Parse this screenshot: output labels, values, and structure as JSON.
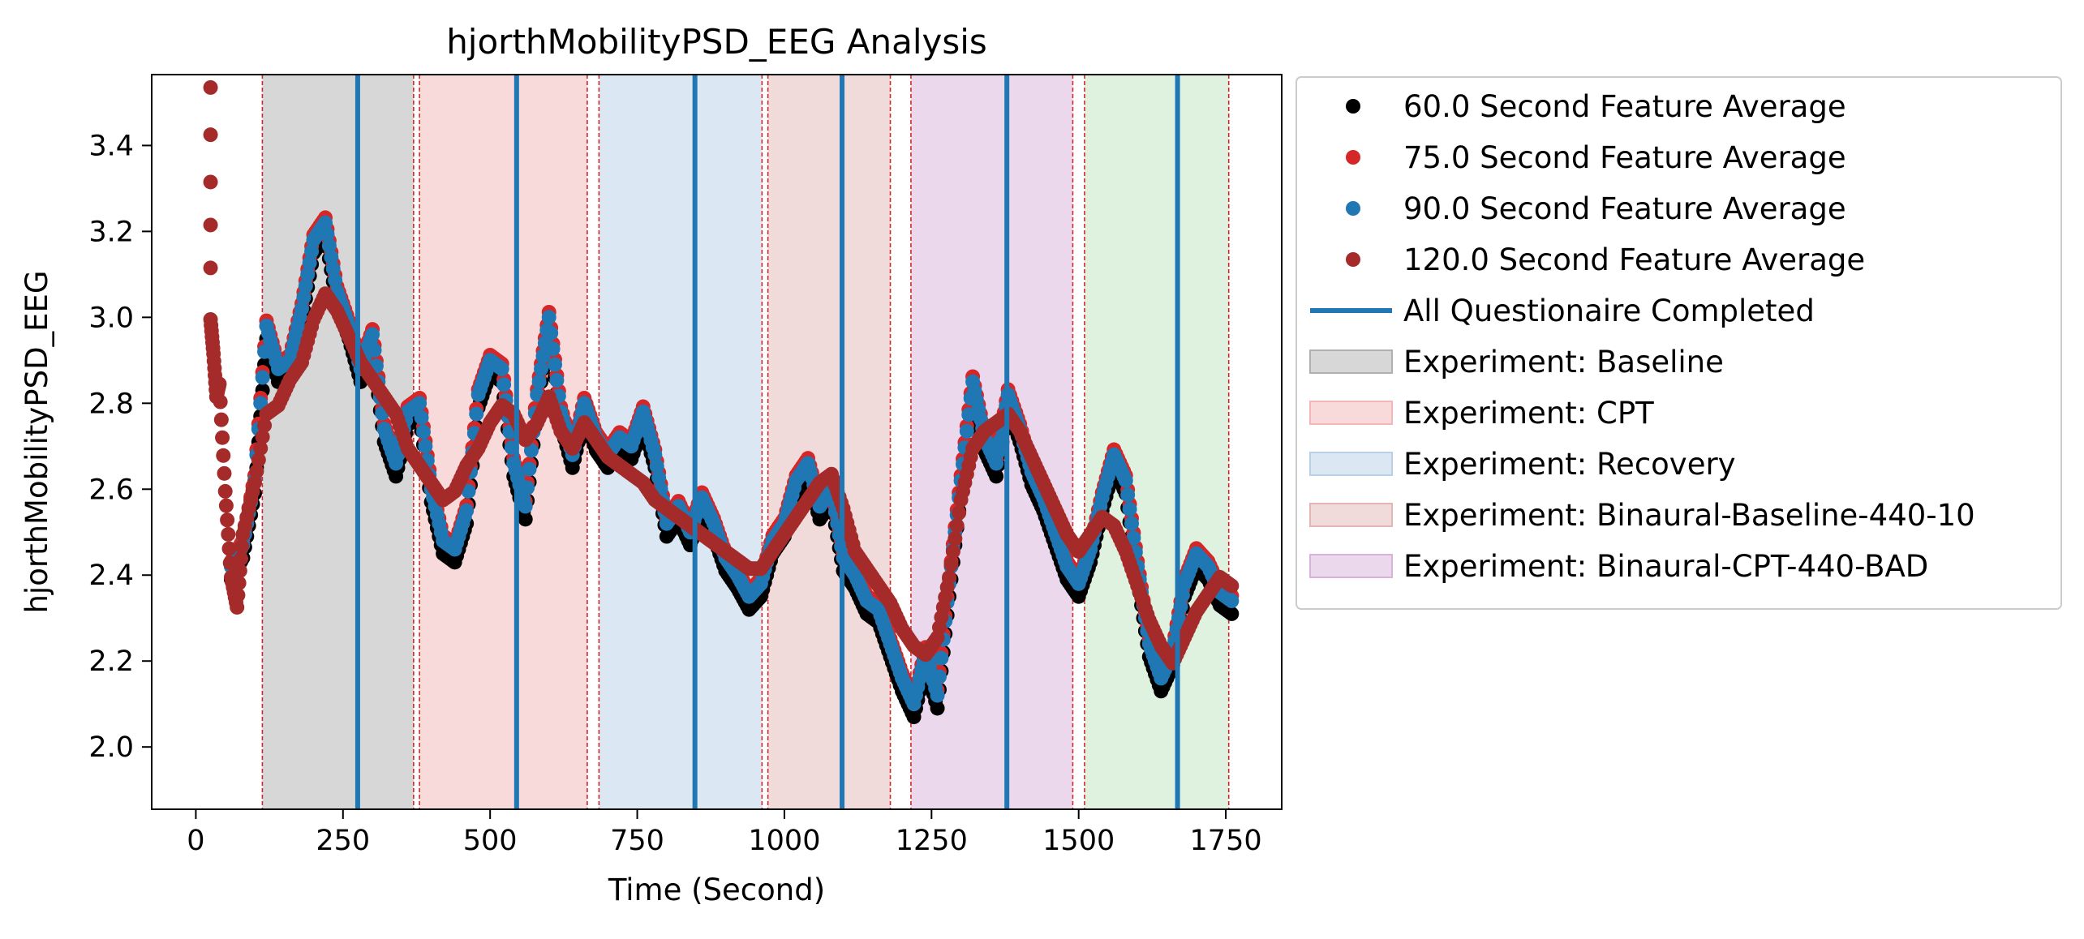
{
  "chart_data": {
    "type": "scatter",
    "title": "hjorthMobilityPSD_EEG Analysis",
    "xlabel": "Time (Second)",
    "ylabel": "hjorthMobilityPSD_EEG",
    "xlim": [
      -75,
      1845
    ],
    "ylim": [
      1.855,
      3.565
    ],
    "xticks": [
      0,
      250,
      500,
      750,
      1000,
      1250,
      1500,
      1750
    ],
    "yticks": [
      2.0,
      2.2,
      2.4,
      2.6,
      2.8,
      3.0,
      3.2,
      3.4
    ],
    "grid": false,
    "legend_position": "outside right, top",
    "phases": [
      {
        "label": "Experiment: Baseline",
        "start": 113,
        "end": 370,
        "color": "#b0b0b0"
      },
      {
        "label": "Experiment: CPT",
        "start": 380,
        "end": 665,
        "color": "#f4b6b8"
      },
      {
        "label": "Experiment: Recovery",
        "start": 685,
        "end": 962,
        "color": "#b8d0e8"
      },
      {
        "label": "Experiment: Binaural-Baseline-440-10",
        "start": 972,
        "end": 1180,
        "color": "#e3b5b5"
      },
      {
        "label": "Experiment: Binaural-CPT-440-BAD",
        "start": 1215,
        "end": 1490,
        "color": "#d8b2da"
      },
      {
        "label": "",
        "start": 1510,
        "end": 1755,
        "color": "#bfe3bf"
      }
    ],
    "phase_boundary_color": "#d62728",
    "questionnaire": {
      "label": "All Questionaire Completed",
      "color": "#1f77b4",
      "times": [
        275,
        545,
        848,
        1098,
        1378,
        1668
      ]
    },
    "series": [
      {
        "name": "60.0 Second Feature Average",
        "color": "#000000",
        "offset": -0.03,
        "x": [
          60,
          80,
          100,
          120,
          140,
          160,
          180,
          200,
          220,
          240,
          260,
          280,
          300,
          320,
          340,
          360,
          380,
          400,
          420,
          440,
          460,
          480,
          500,
          520,
          540,
          560,
          580,
          600,
          620,
          640,
          660,
          680,
          700,
          720,
          740,
          760,
          780,
          800,
          820,
          840,
          860,
          880,
          900,
          920,
          940,
          960,
          980,
          1000,
          1020,
          1040,
          1060,
          1080,
          1100,
          1120,
          1140,
          1160,
          1180,
          1200,
          1220,
          1240,
          1260,
          1280,
          1300,
          1320,
          1340,
          1360,
          1380,
          1400,
          1420,
          1440,
          1460,
          1480,
          1500,
          1520,
          1540,
          1560,
          1580,
          1600,
          1620,
          1640,
          1660,
          1680,
          1700,
          1720,
          1740,
          1760
        ],
        "y": [
          2.42,
          2.47,
          2.62,
          2.98,
          2.88,
          2.9,
          3.02,
          3.18,
          3.22,
          3.06,
          2.98,
          2.88,
          2.96,
          2.74,
          2.66,
          2.78,
          2.8,
          2.6,
          2.48,
          2.46,
          2.55,
          2.82,
          2.9,
          2.88,
          2.66,
          2.56,
          2.82,
          3.0,
          2.78,
          2.68,
          2.8,
          2.72,
          2.68,
          2.72,
          2.7,
          2.78,
          2.68,
          2.52,
          2.56,
          2.5,
          2.58,
          2.52,
          2.44,
          2.4,
          2.35,
          2.38,
          2.48,
          2.52,
          2.62,
          2.66,
          2.56,
          2.6,
          2.44,
          2.4,
          2.34,
          2.32,
          2.24,
          2.16,
          2.1,
          2.22,
          2.12,
          2.38,
          2.62,
          2.85,
          2.72,
          2.66,
          2.82,
          2.74,
          2.64,
          2.58,
          2.5,
          2.42,
          2.38,
          2.46,
          2.58,
          2.68,
          2.62,
          2.42,
          2.24,
          2.16,
          2.22,
          2.38,
          2.45,
          2.42,
          2.36,
          2.34
        ]
      },
      {
        "name": "75.0 Second Feature Average",
        "color": "#d62728",
        "offset": 0.012,
        "x": [
          60,
          80,
          100,
          120,
          140,
          160,
          180,
          200,
          220,
          240,
          260,
          280,
          300,
          320,
          340,
          360,
          380,
          400,
          420,
          440,
          460,
          480,
          500,
          520,
          540,
          560,
          580,
          600,
          620,
          640,
          660,
          680,
          700,
          720,
          740,
          760,
          780,
          800,
          820,
          840,
          860,
          880,
          900,
          920,
          940,
          960,
          980,
          1000,
          1020,
          1040,
          1060,
          1080,
          1100,
          1120,
          1140,
          1160,
          1180,
          1200,
          1220,
          1240,
          1260,
          1280,
          1300,
          1320,
          1340,
          1360,
          1380,
          1400,
          1420,
          1440,
          1460,
          1480,
          1500,
          1520,
          1540,
          1560,
          1580,
          1600,
          1620,
          1640,
          1660,
          1680,
          1700,
          1720,
          1740,
          1760
        ],
        "y": [
          2.42,
          2.47,
          2.62,
          2.98,
          2.88,
          2.9,
          3.02,
          3.18,
          3.22,
          3.06,
          2.98,
          2.88,
          2.96,
          2.74,
          2.66,
          2.78,
          2.8,
          2.6,
          2.48,
          2.46,
          2.55,
          2.82,
          2.9,
          2.88,
          2.66,
          2.56,
          2.82,
          3.0,
          2.78,
          2.68,
          2.8,
          2.72,
          2.68,
          2.72,
          2.7,
          2.78,
          2.68,
          2.52,
          2.56,
          2.5,
          2.58,
          2.52,
          2.44,
          2.4,
          2.35,
          2.38,
          2.48,
          2.52,
          2.62,
          2.66,
          2.56,
          2.6,
          2.44,
          2.4,
          2.34,
          2.32,
          2.24,
          2.16,
          2.1,
          2.22,
          2.12,
          2.38,
          2.62,
          2.85,
          2.72,
          2.66,
          2.82,
          2.74,
          2.64,
          2.58,
          2.5,
          2.42,
          2.38,
          2.46,
          2.58,
          2.68,
          2.62,
          2.42,
          2.24,
          2.16,
          2.22,
          2.38,
          2.45,
          2.42,
          2.36,
          2.34
        ]
      },
      {
        "name": "90.0 Second Feature Average",
        "color": "#1f77b4",
        "offset": 0.0,
        "x": [
          60,
          80,
          100,
          120,
          140,
          160,
          180,
          200,
          220,
          240,
          260,
          280,
          300,
          320,
          340,
          360,
          380,
          400,
          420,
          440,
          460,
          480,
          500,
          520,
          540,
          560,
          580,
          600,
          620,
          640,
          660,
          680,
          700,
          720,
          740,
          760,
          780,
          800,
          820,
          840,
          860,
          880,
          900,
          920,
          940,
          960,
          980,
          1000,
          1020,
          1040,
          1060,
          1080,
          1100,
          1120,
          1140,
          1160,
          1180,
          1200,
          1220,
          1240,
          1260,
          1280,
          1300,
          1320,
          1340,
          1360,
          1380,
          1400,
          1420,
          1440,
          1460,
          1480,
          1500,
          1520,
          1540,
          1560,
          1580,
          1600,
          1620,
          1640,
          1660,
          1680,
          1700,
          1720,
          1740,
          1760
        ],
        "y": [
          2.42,
          2.47,
          2.62,
          2.98,
          2.88,
          2.9,
          3.02,
          3.18,
          3.22,
          3.06,
          2.98,
          2.88,
          2.96,
          2.74,
          2.66,
          2.78,
          2.8,
          2.6,
          2.48,
          2.46,
          2.55,
          2.82,
          2.9,
          2.88,
          2.66,
          2.56,
          2.82,
          3.0,
          2.78,
          2.68,
          2.8,
          2.72,
          2.68,
          2.72,
          2.7,
          2.78,
          2.68,
          2.52,
          2.56,
          2.5,
          2.58,
          2.52,
          2.44,
          2.4,
          2.35,
          2.38,
          2.48,
          2.52,
          2.62,
          2.66,
          2.56,
          2.6,
          2.44,
          2.4,
          2.34,
          2.32,
          2.24,
          2.16,
          2.1,
          2.22,
          2.12,
          2.38,
          2.62,
          2.85,
          2.72,
          2.66,
          2.82,
          2.74,
          2.64,
          2.58,
          2.5,
          2.42,
          2.38,
          2.46,
          2.58,
          2.68,
          2.62,
          2.42,
          2.24,
          2.16,
          2.22,
          2.38,
          2.45,
          2.42,
          2.36,
          2.34
        ]
      },
      {
        "name": "120.0 Second Feature Average",
        "color": "#a52a2a",
        "offset": -0.005,
        "x": [
          25,
          25,
          25,
          25,
          25,
          25,
          30,
          35,
          40,
          50,
          60,
          70,
          80,
          100,
          120,
          140,
          160,
          180,
          200,
          220,
          240,
          260,
          280,
          300,
          320,
          340,
          360,
          380,
          400,
          420,
          440,
          460,
          480,
          500,
          520,
          540,
          560,
          580,
          600,
          620,
          640,
          660,
          680,
          700,
          720,
          740,
          760,
          780,
          800,
          820,
          840,
          860,
          880,
          900,
          920,
          940,
          960,
          980,
          1000,
          1020,
          1040,
          1060,
          1080,
          1100,
          1120,
          1140,
          1160,
          1180,
          1200,
          1220,
          1240,
          1260,
          1280,
          1300,
          1320,
          1340,
          1360,
          1380,
          1400,
          1420,
          1440,
          1460,
          1480,
          1500,
          1520,
          1540,
          1560,
          1580,
          1600,
          1620,
          1640,
          1660,
          1680,
          1700,
          1720,
          1740,
          1760
        ],
        "y": [
          3.54,
          3.43,
          3.32,
          3.22,
          3.12,
          3.0,
          2.92,
          2.82,
          2.85,
          2.6,
          2.4,
          2.33,
          2.5,
          2.62,
          2.78,
          2.8,
          2.86,
          2.9,
          3.0,
          3.06,
          3.02,
          2.96,
          2.9,
          2.86,
          2.82,
          2.78,
          2.7,
          2.66,
          2.62,
          2.58,
          2.6,
          2.66,
          2.7,
          2.76,
          2.8,
          2.78,
          2.72,
          2.76,
          2.82,
          2.74,
          2.7,
          2.76,
          2.72,
          2.68,
          2.66,
          2.64,
          2.62,
          2.58,
          2.56,
          2.54,
          2.52,
          2.5,
          2.48,
          2.46,
          2.44,
          2.42,
          2.42,
          2.46,
          2.5,
          2.54,
          2.58,
          2.62,
          2.64,
          2.56,
          2.46,
          2.42,
          2.38,
          2.34,
          2.28,
          2.24,
          2.22,
          2.26,
          2.4,
          2.58,
          2.7,
          2.74,
          2.76,
          2.78,
          2.74,
          2.68,
          2.62,
          2.56,
          2.5,
          2.46,
          2.5,
          2.54,
          2.52,
          2.46,
          2.38,
          2.3,
          2.24,
          2.2,
          2.26,
          2.32,
          2.36,
          2.4,
          2.38
        ]
      }
    ]
  }
}
